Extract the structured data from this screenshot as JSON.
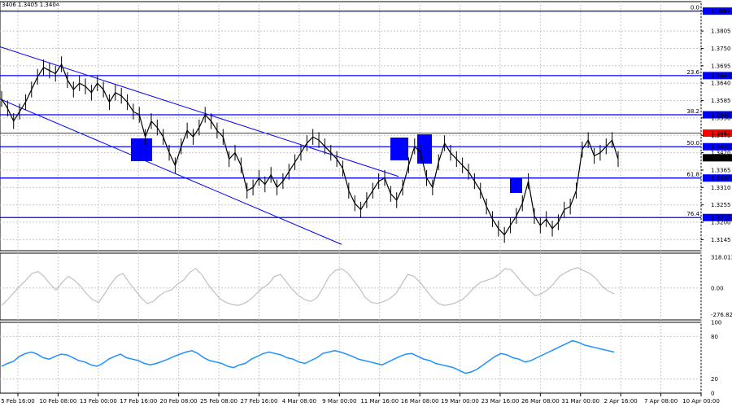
{
  "header": {
    "symbol_info": "3406 1.3405 1.3404"
  },
  "chart_data": [
    {
      "type": "line",
      "pane": "price",
      "title": "",
      "ylim": [
        1.311,
        1.3898
      ],
      "grid": true,
      "price_ticks": [
        "1.3868",
        "1.3805",
        "1.3750",
        "1.3695",
        "1.3640",
        "1.3585",
        "1.3530",
        "1.3475",
        "1.3420",
        "1.3365",
        "1.3310",
        "1.3255",
        "1.3200",
        "1.3145"
      ],
      "series": [
        {
          "values": [
            1.359,
            1.356,
            1.352,
            1.355,
            1.358,
            1.362,
            1.366,
            1.369,
            1.368,
            1.367,
            1.37,
            1.365,
            1.362,
            1.364,
            1.363,
            1.361,
            1.364,
            1.362,
            1.358,
            1.361,
            1.36,
            1.358,
            1.355,
            1.354,
            1.347,
            1.352,
            1.35,
            1.347,
            1.342,
            1.338,
            1.344,
            1.349,
            1.347,
            1.35,
            1.354,
            1.352,
            1.349,
            1.347,
            1.34,
            1.342,
            1.338,
            1.33,
            1.331,
            1.334,
            1.332,
            1.335,
            1.331,
            1.333,
            1.336,
            1.339,
            1.342,
            1.345,
            1.347,
            1.346,
            1.344,
            1.342,
            1.34,
            1.337,
            1.33,
            1.326,
            1.324,
            1.327,
            1.33,
            1.333,
            1.334,
            1.329,
            1.327,
            1.331,
            1.338,
            1.344,
            1.342,
            1.334,
            1.331,
            1.339,
            1.345,
            1.342,
            1.34,
            1.338,
            1.336,
            1.333,
            1.33,
            1.325,
            1.321,
            1.318,
            1.316,
            1.319,
            1.322,
            1.326,
            1.333,
            1.322,
            1.319,
            1.321,
            1.318,
            1.32,
            1.324,
            1.325,
            1.33,
            1.343,
            1.346,
            1.341,
            1.342,
            1.344,
            1.346,
            1.34
          ]
        }
      ],
      "levels": [
        {
          "price": 1.3868,
          "label": "1.3868",
          "fib": "0.0"
        },
        {
          "price": 1.3664,
          "label": "1.3664",
          "fib": "23.6"
        },
        {
          "price": 1.354,
          "label": "1.3540",
          "fib": "38.2"
        },
        {
          "price": 1.3439,
          "label": "1.3439",
          "fib": "50.0"
        },
        {
          "price": 1.334,
          "label": "1.3340",
          "fib": "61.8"
        },
        {
          "price": 1.3215,
          "label": "1.3215",
          "fib": "76.4"
        }
      ],
      "red_level": {
        "price": 1.3482,
        "label": "1.3482"
      },
      "current_price": {
        "price": 1.3404,
        "label": "1.3404"
      },
      "extra_labels": [
        "1.3530",
        "1.3420"
      ]
    },
    {
      "type": "line",
      "pane": "cci",
      "ylim": [
        -330,
        360
      ],
      "ticks": [
        "318.013",
        "0.00",
        "-276.828"
      ],
      "series": [
        {
          "values": [
            -180,
            -120,
            -50,
            20,
            80,
            150,
            170,
            120,
            40,
            -20,
            60,
            120,
            80,
            20,
            -60,
            -120,
            -150,
            -60,
            40,
            120,
            150,
            60,
            -20,
            -100,
            -160,
            -140,
            -80,
            -40,
            -20,
            40,
            80,
            160,
            200,
            140,
            40,
            -40,
            -110,
            -150,
            -170,
            -180,
            -160,
            -120,
            -60,
            0,
            40,
            120,
            140,
            60,
            -20,
            -80,
            -120,
            -140,
            -100,
            0,
            120,
            180,
            200,
            160,
            80,
            0,
            -100,
            -150,
            -160,
            -140,
            -110,
            -60,
            40,
            140,
            120,
            60,
            -20,
            -100,
            -160,
            -180,
            -170,
            -150,
            -120,
            -60,
            10,
            60,
            80,
            100,
            140,
            200,
            190,
            120,
            40,
            -20,
            -80,
            -60,
            -20,
            40,
            120,
            160,
            190,
            210,
            180,
            150,
            100,
            20,
            -30,
            -60
          ]
        }
      ]
    },
    {
      "type": "line",
      "pane": "rsi",
      "ylim": [
        0,
        100
      ],
      "ticks": [
        "100",
        "80",
        "20",
        "0"
      ],
      "series": [
        {
          "values": [
            38,
            42,
            45,
            52,
            56,
            58,
            55,
            50,
            48,
            52,
            55,
            54,
            50,
            46,
            44,
            40,
            38,
            42,
            48,
            52,
            55,
            50,
            48,
            46,
            42,
            40,
            42,
            45,
            48,
            52,
            55,
            58,
            60,
            56,
            50,
            46,
            44,
            42,
            38,
            36,
            40,
            42,
            48,
            52,
            56,
            58,
            56,
            54,
            50,
            48,
            44,
            42,
            46,
            50,
            56,
            58,
            60,
            58,
            55,
            52,
            48,
            46,
            44,
            42,
            40,
            44,
            48,
            52,
            55,
            56,
            52,
            48,
            46,
            42,
            40,
            38,
            36,
            32,
            28,
            30,
            34,
            40,
            46,
            52,
            56,
            54,
            50,
            48,
            44,
            46,
            50,
            54,
            58,
            62,
            66,
            70,
            74,
            72,
            68,
            66,
            64,
            62,
            60,
            58
          ]
        }
      ]
    }
  ],
  "x_axis": {
    "labels": [
      "5 Feb 16:00",
      "10 Feb 08:00",
      "13 Feb 00:00",
      "17 Feb 16:00",
      "20 Feb 08:00",
      "25 Feb 08:00",
      "27 Feb 16:00",
      "4 Mar 08:00",
      "9 Mar 00:00",
      "11 Mar 16:00",
      "16 Mar 08:00",
      "19 Mar 00:00",
      "23 Mar 16:00",
      "26 Mar 08:00",
      "31 Mar 00:00",
      "2 Apr 16:00",
      "7 Apr 08:00",
      "10 Apr 00:00"
    ]
  },
  "colors": {
    "price_line": "#000000",
    "level_line": "#0000ff",
    "red_level": "#ff0000",
    "box": "#0000ff",
    "cci": "#c0c0c0",
    "rsi": "#1e90ff",
    "grid": "#c8c8c8"
  }
}
